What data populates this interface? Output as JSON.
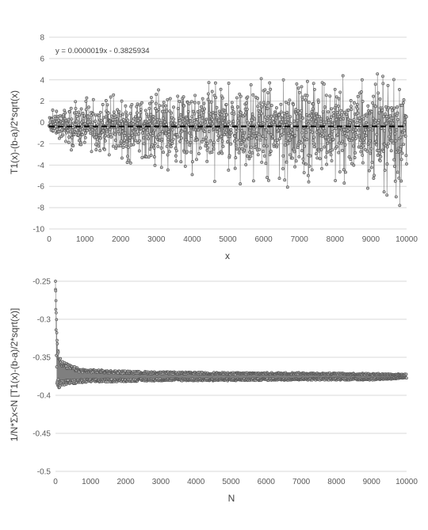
{
  "chart_data": [
    {
      "type": "scatter",
      "title": "",
      "xlabel": "x",
      "ylabel": "T1(x)-(b-a)/2*sqrt(x)",
      "xlim": [
        0,
        10000
      ],
      "ylim": [
        -10,
        8
      ],
      "x_ticks": [
        "0",
        "1000",
        "2000",
        "3000",
        "4000",
        "5000",
        "6000",
        "7000",
        "8000",
        "9000",
        "10000"
      ],
      "y_ticks": [
        "8",
        "6",
        "4",
        "2",
        "0",
        "-2",
        "-4",
        "-6",
        "-8",
        "-10"
      ],
      "grid": "horizontal",
      "trendline": {
        "label": "y = 0.0000019x - 0.3825934",
        "slope": 1.9e-06,
        "intercept": -0.3825934
      },
      "series": [
        {
          "x_range": [
            0,
            10000
          ],
          "envelope": {
            "x": [
              0,
              500,
              1000,
              2000,
              3000,
              4000,
              5000,
              6000,
              7000,
              8000,
              9000,
              9800,
              10000
            ],
            "upper": [
              1.2,
              2.0,
              2.3,
              2.7,
              3.2,
              3.8,
              4.0,
              4.3,
              4.5,
              4.5,
              4.6,
              4.8,
              3.0
            ],
            "lower": [
              -1.0,
              -2.5,
              -3.2,
              -3.8,
              -4.5,
              -5.2,
              -5.8,
              -6.0,
              -6.2,
              -6.4,
              -6.6,
              -8.0,
              -4.0
            ]
          }
        }
      ]
    },
    {
      "type": "line",
      "title": "",
      "xlabel": "N",
      "ylabel": "1/N*Σx<N [T1(x)-(b-a)/2*sqrt(x)]",
      "xlim": [
        0,
        10000
      ],
      "ylim": [
        -0.5,
        -0.25
      ],
      "x_ticks": [
        "0",
        "1000",
        "2000",
        "3000",
        "4000",
        "5000",
        "6000",
        "7000",
        "8000",
        "9000",
        "10000"
      ],
      "y_ticks": [
        "-0.25",
        "-0.3",
        "-0.35",
        "-0.4",
        "-0.45",
        "-0.5"
      ],
      "grid": "horizontal",
      "series": [
        {
          "x": [
            0,
            30,
            60,
            100,
            200,
            400,
            700,
            1000,
            2000,
            3000,
            5000,
            7000,
            9000,
            10000
          ],
          "upper": [
            -0.25,
            -0.3,
            -0.33,
            -0.345,
            -0.355,
            -0.36,
            -0.365,
            -0.366,
            -0.368,
            -0.369,
            -0.37,
            -0.37,
            -0.371,
            -0.372
          ],
          "lower": [
            -0.25,
            -0.38,
            -0.392,
            -0.39,
            -0.388,
            -0.386,
            -0.384,
            -0.383,
            -0.382,
            -0.381,
            -0.381,
            -0.38,
            -0.38,
            -0.378
          ]
        }
      ]
    }
  ]
}
